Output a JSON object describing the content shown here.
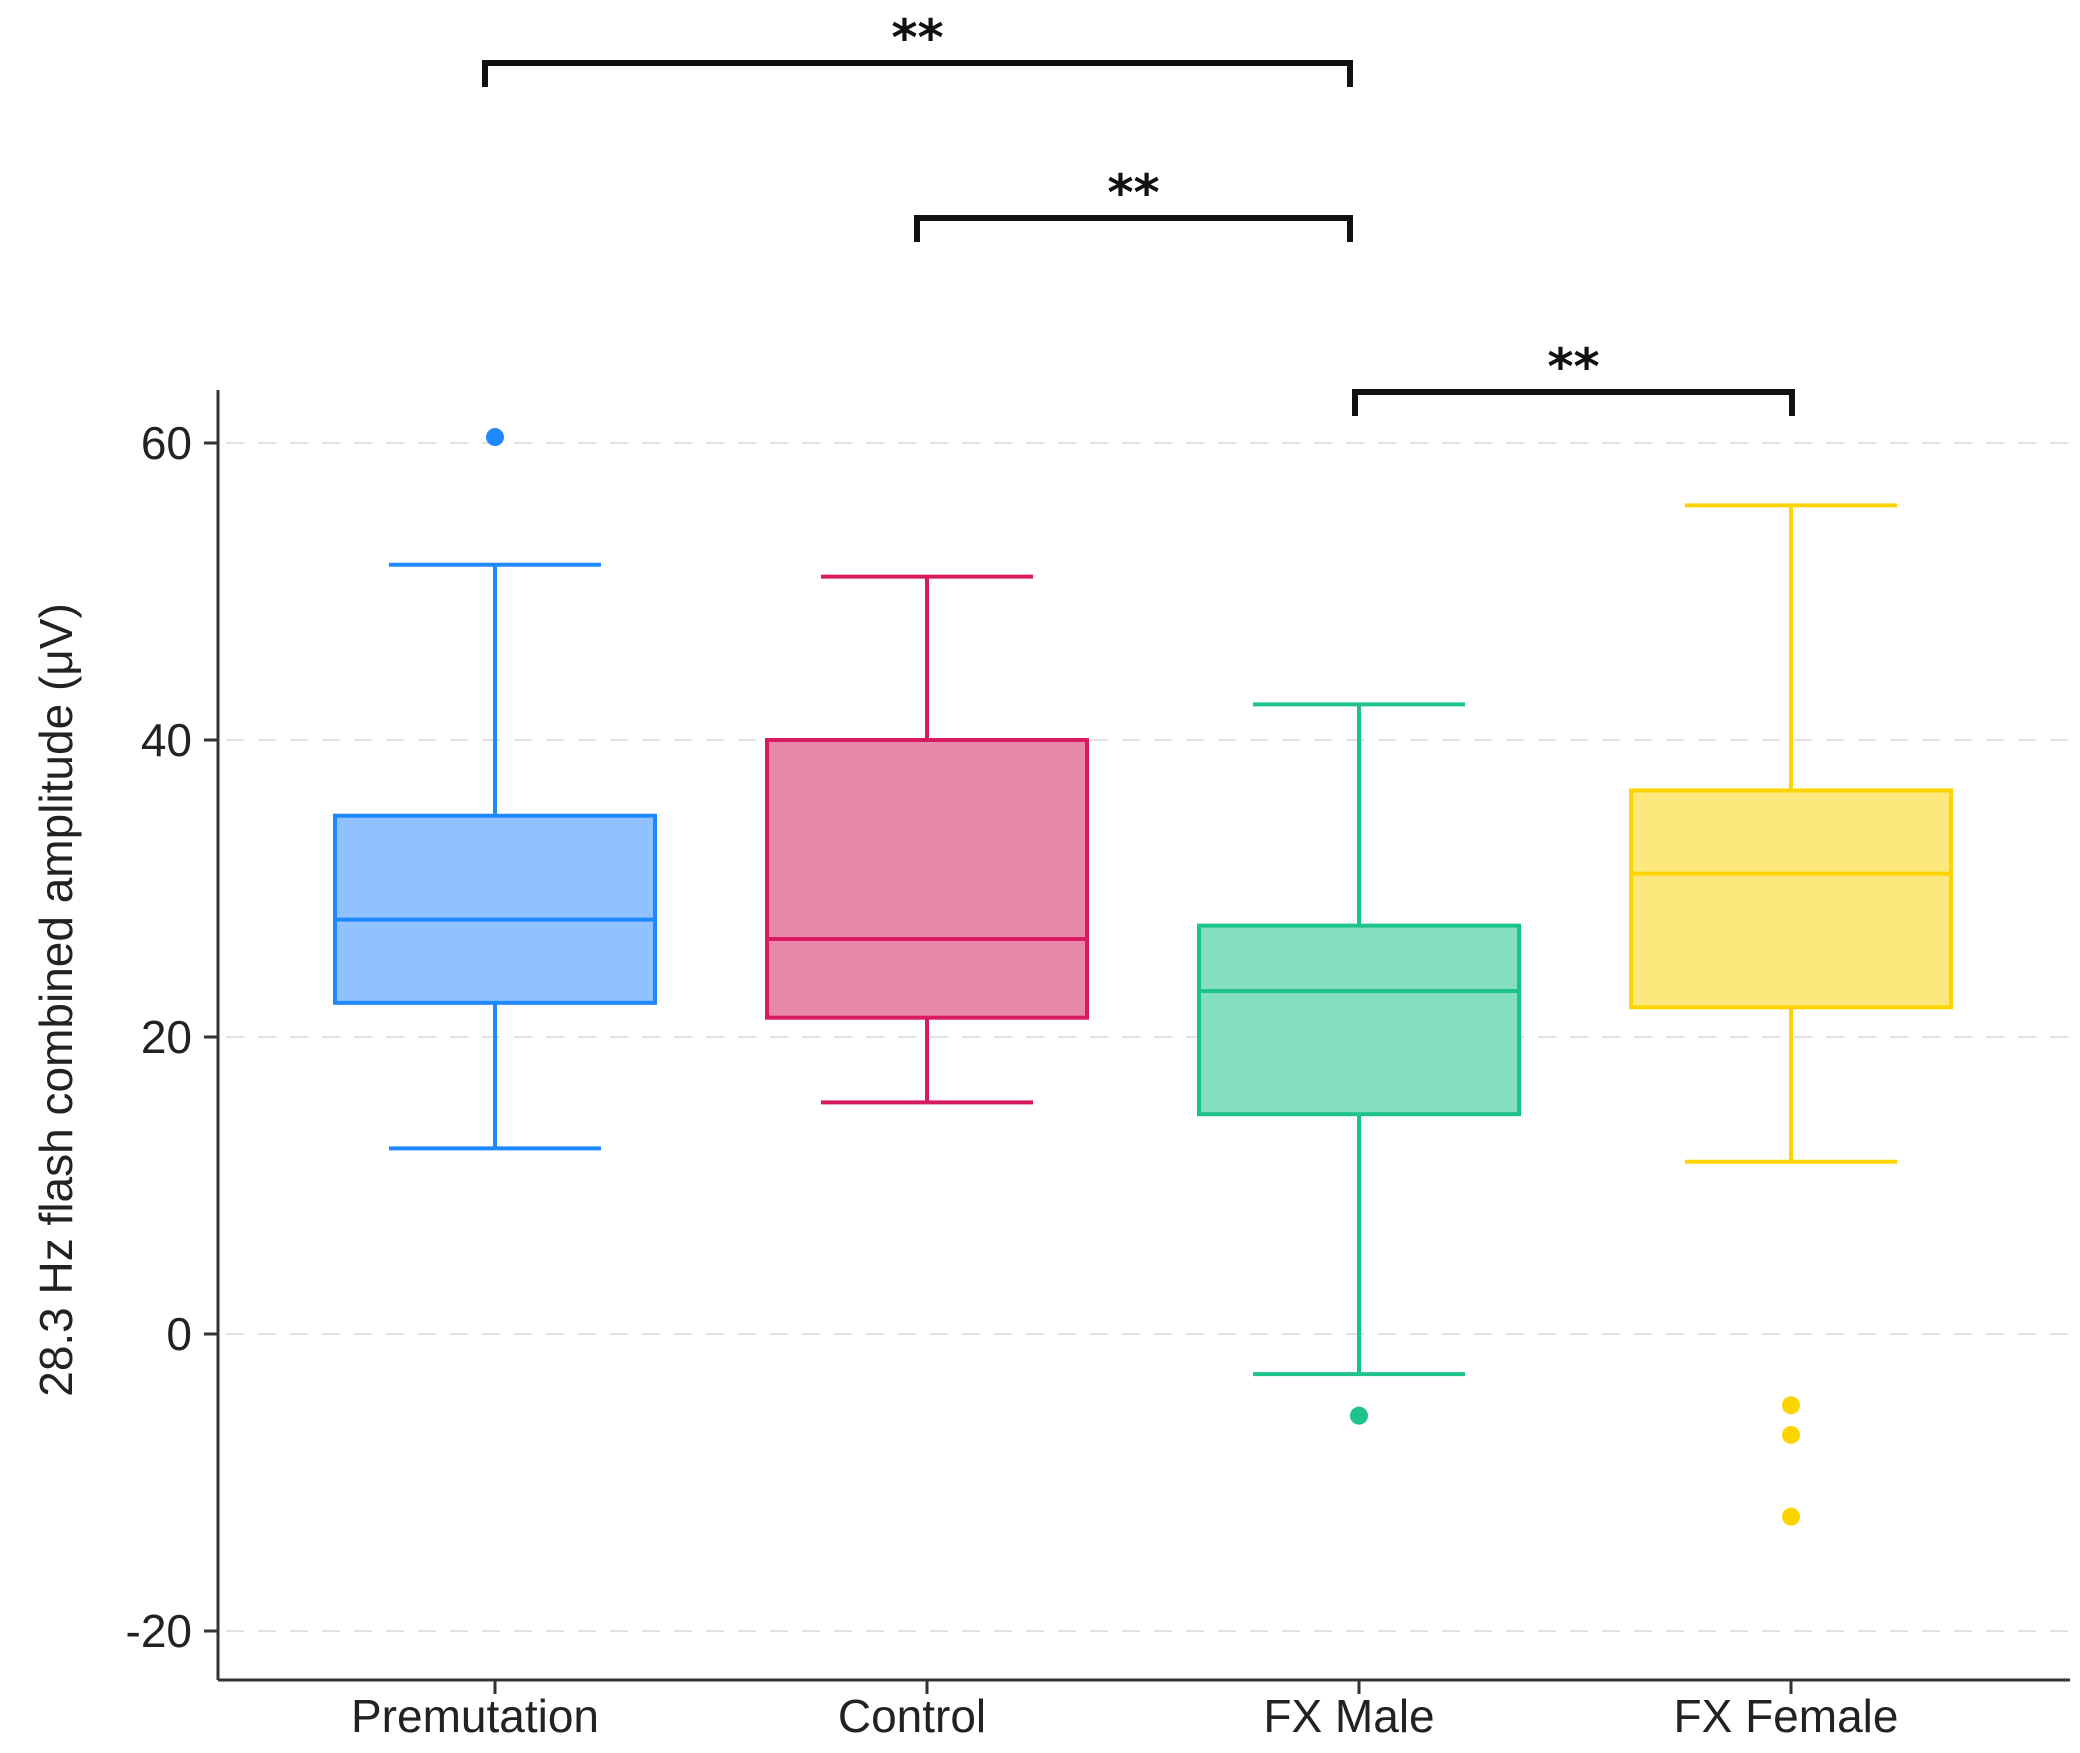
{
  "chart_data": {
    "type": "box",
    "title": "",
    "xlabel": "",
    "ylabel": "28.3 Hz flash combined amplitude (μV)",
    "ylim": [
      -23.5,
      63.5
    ],
    "yticks": [
      -20,
      0,
      20,
      40,
      60
    ],
    "ytick_labels": [
      "-20",
      "0",
      "20",
      "40",
      "60"
    ],
    "grid": "horizontal-dashed",
    "categories": [
      "Premutation",
      "Control",
      "FX Male",
      "FX Female"
    ],
    "series": [
      {
        "name": "Premutation",
        "color": "#1e88ff",
        "fill": "#90c2ff",
        "whisker_low": 12.5,
        "q1": 22.3,
        "median": 27.9,
        "q3": 34.9,
        "whisker_high": 51.8,
        "outliers": [
          60.4
        ]
      },
      {
        "name": "Control",
        "color": "#d81b60",
        "fill": "#e989aa",
        "whisker_low": 15.6,
        "q1": 21.3,
        "median": 26.6,
        "q3": 40.0,
        "whisker_high": 51.0,
        "outliers": []
      },
      {
        "name": "FX Male",
        "color": "#1ec28b",
        "fill": "#84dfc0",
        "whisker_low": -2.7,
        "q1": 14.8,
        "median": 23.1,
        "q3": 27.5,
        "whisker_high": 42.4,
        "outliers": [
          -5.5
        ]
      },
      {
        "name": "FX Female",
        "color": "#fdd300",
        "fill": "#fde87e",
        "whisker_low": 11.6,
        "q1": 22.0,
        "median": 31.0,
        "q3": 36.6,
        "whisker_high": 55.8,
        "outliers": [
          -4.8,
          -6.8,
          -12.3
        ]
      }
    ],
    "significance": [
      {
        "from": "Premutation",
        "to": "FX Male",
        "label": "**"
      },
      {
        "from": "Control",
        "to": "FX Male",
        "label": "**"
      },
      {
        "from": "FX Male",
        "to": "FX Female",
        "label": "**"
      }
    ]
  }
}
